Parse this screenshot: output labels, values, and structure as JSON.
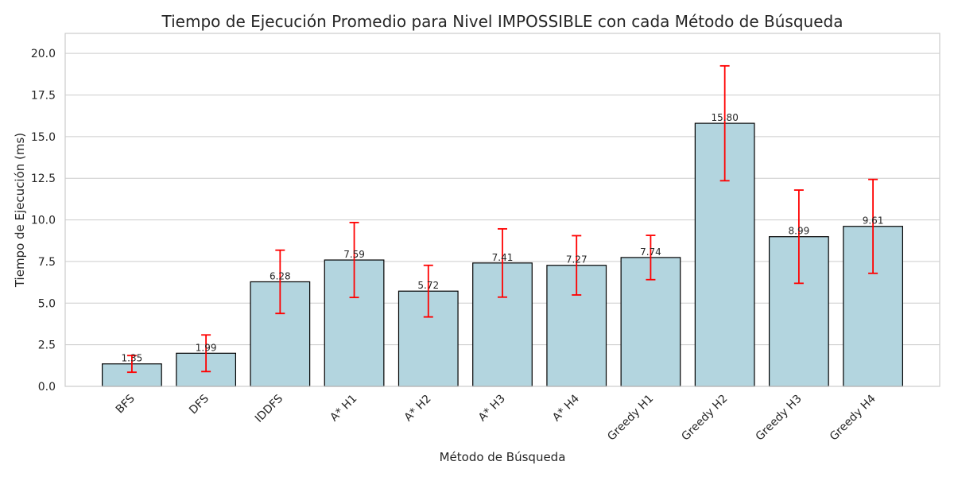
{
  "chart_data": {
    "type": "bar",
    "title": "Tiempo de Ejecución Promedio para Nivel IMPOSSIBLE con cada Método de Búsqueda",
    "xlabel": "Método de Búsqueda",
    "ylabel": "Tiempo de Ejecución (ms)",
    "categories": [
      "BFS",
      "DFS",
      "IDDFS",
      "A* H1",
      "A* H2",
      "A* H3",
      "A* H4",
      "Greedy H1",
      "Greedy H2",
      "Greedy H3",
      "Greedy H4"
    ],
    "values": [
      1.35,
      1.99,
      6.28,
      7.59,
      5.72,
      7.41,
      7.27,
      7.74,
      15.8,
      8.99,
      9.61
    ],
    "value_labels": [
      "1.35",
      "1.99",
      "6.28",
      "7.59",
      "5.72",
      "7.41",
      "7.27",
      "7.74",
      "15.80",
      "8.99",
      "9.61"
    ],
    "error": [
      0.5,
      1.1,
      1.9,
      2.25,
      1.55,
      2.05,
      1.78,
      1.33,
      3.45,
      2.8,
      2.82
    ],
    "ylim": [
      0,
      21.2
    ],
    "yticks": [
      0,
      2.5,
      5,
      7.5,
      10,
      12.5,
      15,
      17.5,
      20
    ],
    "ytick_labels": [
      "0.0",
      "2.5",
      "5.0",
      "7.5",
      "10.0",
      "12.5",
      "15.0",
      "17.5",
      "20.0"
    ],
    "grid": "horizontal",
    "colors": {
      "bar": "#b3d5df",
      "edge": "#000000",
      "error": "#ff0000",
      "grid": "#cccccc",
      "frame": "#cccccc"
    }
  }
}
